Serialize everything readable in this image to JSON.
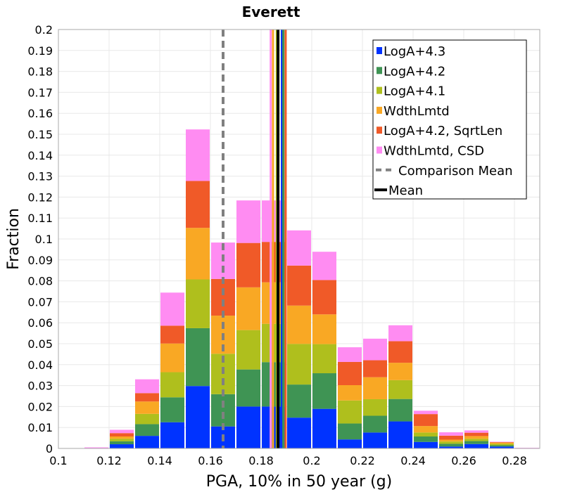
{
  "chart_data": {
    "type": "bar",
    "stacked": true,
    "title": "Everett",
    "xlabel": "PGA, 10% in 50 year (g)",
    "ylabel": "Fraction",
    "xlim": [
      0.1,
      0.29
    ],
    "ylim": [
      0,
      0.2
    ],
    "grid": true,
    "bin_width": 0.01,
    "x_ticks": [
      "0.1",
      "0.12",
      "0.14",
      "0.16",
      "0.18",
      "0.2",
      "0.22",
      "0.24",
      "0.26",
      "0.28"
    ],
    "y_ticks": [
      "0",
      "0.01",
      "0.02",
      "0.03",
      "0.04",
      "0.05",
      "0.06",
      "0.07",
      "0.08",
      "0.09",
      "0.1",
      "0.11",
      "0.12",
      "0.13",
      "0.14",
      "0.15",
      "0.16",
      "0.17",
      "0.18",
      "0.19",
      "0.2"
    ],
    "bin_centers": [
      0.115,
      0.125,
      0.135,
      0.145,
      0.155,
      0.165,
      0.175,
      0.185,
      0.195,
      0.205,
      0.215,
      0.225,
      0.235,
      0.245,
      0.255,
      0.265,
      0.275,
      0.285
    ],
    "series": [
      {
        "name": "LogA+4.3",
        "color": "#0033ff",
        "values": [
          0,
          0.002,
          0.006,
          0.0125,
          0.0298,
          0.0105,
          0.02,
          0.02,
          0.0147,
          0.0189,
          0.0043,
          0.0076,
          0.0129,
          0.0031,
          0.0009,
          0.0021,
          0.0009,
          0.0001
        ]
      },
      {
        "name": "LogA+4.2",
        "color": "#3f9454",
        "values": [
          0,
          0.0014,
          0.0056,
          0.0119,
          0.0276,
          0.0154,
          0.0177,
          0.0212,
          0.0158,
          0.017,
          0.0076,
          0.008,
          0.0107,
          0.0026,
          0.0013,
          0.0014,
          0.0006,
          0
        ]
      },
      {
        "name": "LogA+4.1",
        "color": "#afbf1d",
        "values": [
          0,
          0.0012,
          0.0049,
          0.012,
          0.0233,
          0.0193,
          0.0188,
          0.0183,
          0.0194,
          0.0139,
          0.011,
          0.0079,
          0.009,
          0.0019,
          0.0011,
          0.0011,
          0.0007,
          0
        ]
      },
      {
        "name": "WdthLmtd",
        "color": "#f9a824",
        "values": [
          0,
          0.0011,
          0.0059,
          0.0137,
          0.0246,
          0.0182,
          0.0204,
          0.0198,
          0.0183,
          0.0142,
          0.0073,
          0.0105,
          0.0083,
          0.0031,
          0.0009,
          0.0013,
          0.0006,
          0
        ]
      },
      {
        "name": "LogA+4.2, SqrtLen",
        "color": "#f05a28",
        "values": [
          0,
          0.0016,
          0.004,
          0.0085,
          0.0224,
          0.0175,
          0.0212,
          0.0193,
          0.0191,
          0.0164,
          0.0111,
          0.0081,
          0.0103,
          0.0057,
          0.0019,
          0.0016,
          0.0003,
          0
        ]
      },
      {
        "name": "WdthLmtd, CSD",
        "color": "#ff8cf2",
        "values": [
          0.0005,
          0.0016,
          0.0066,
          0.0158,
          0.0246,
          0.0174,
          0.0203,
          0.0198,
          0.0168,
          0.0135,
          0.007,
          0.0103,
          0.0076,
          0.0016,
          0.0016,
          0.0011,
          0.0001,
          0.0002
        ]
      }
    ],
    "vertical_lines": [
      {
        "name": "Comparison Mean",
        "x": 0.165,
        "color": "#808080",
        "dashed": true
      },
      {
        "name": "WdthLmtd, CSD",
        "x": 0.1838,
        "color": "#ff8cf2",
        "dashed": false
      },
      {
        "name": "WdthLmtd",
        "x": 0.1847,
        "color": "#f9a824",
        "dashed": false
      },
      {
        "name": "LogA+4.1",
        "x": 0.1862,
        "color": "#afbf1d",
        "dashed": false
      },
      {
        "name": "LogA+4.3",
        "x": 0.1882,
        "color": "#0033ff",
        "dashed": false
      },
      {
        "name": "LogA+4.2",
        "x": 0.1888,
        "color": "#3f9454",
        "dashed": false
      },
      {
        "name": "LogA+4.2, SqrtLen",
        "x": 0.1897,
        "color": "#f05a28",
        "dashed": false
      },
      {
        "name": "Mean",
        "x": 0.1867,
        "color": "#000000",
        "dashed": false
      }
    ],
    "legend_position": "top-right",
    "legend": [
      {
        "label": "LogA+4.3",
        "type": "square",
        "color": "#0033ff"
      },
      {
        "label": "LogA+4.2",
        "type": "square",
        "color": "#3f9454"
      },
      {
        "label": "LogA+4.1",
        "type": "square",
        "color": "#afbf1d"
      },
      {
        "label": "WdthLmtd",
        "type": "square",
        "color": "#f9a824"
      },
      {
        "label": "LogA+4.2, SqrtLen",
        "type": "square",
        "color": "#f05a28"
      },
      {
        "label": "WdthLmtd, CSD",
        "type": "square",
        "color": "#ff8cf2"
      },
      {
        "label": "Comparison Mean",
        "type": "dashed",
        "color": "#808080"
      },
      {
        "label": "Mean",
        "type": "line",
        "color": "#000000"
      }
    ]
  }
}
